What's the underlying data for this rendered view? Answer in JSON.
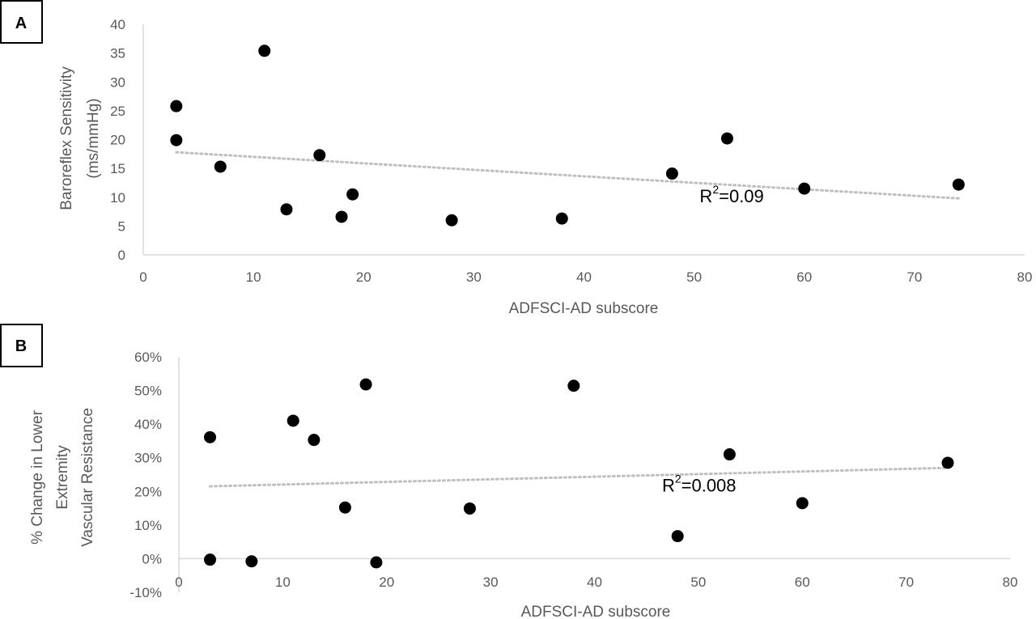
{
  "chart_data": [
    {
      "panel": "A",
      "type": "scatter",
      "xlabel": "ADFSCI-AD subscore",
      "ylabel": [
        "Baroreflex Sensitivity",
        "(ms/mmHg)"
      ],
      "xlim": [
        0,
        80
      ],
      "ylim": [
        0,
        40
      ],
      "xticks": [
        "0",
        "10",
        "20",
        "30",
        "40",
        "50",
        "60",
        "70",
        "80"
      ],
      "yticks": [
        "0",
        "5",
        "10",
        "15",
        "20",
        "25",
        "30",
        "35",
        "40"
      ],
      "grid": false,
      "points": [
        {
          "x": 3,
          "y": 25.8
        },
        {
          "x": 3,
          "y": 19.9
        },
        {
          "x": 7,
          "y": 15.3
        },
        {
          "x": 11,
          "y": 35.4
        },
        {
          "x": 13,
          "y": 7.9
        },
        {
          "x": 16,
          "y": 17.3
        },
        {
          "x": 18,
          "y": 6.6
        },
        {
          "x": 19,
          "y": 10.5
        },
        {
          "x": 28,
          "y": 6.0
        },
        {
          "x": 38,
          "y": 6.3
        },
        {
          "x": 48,
          "y": 14.1
        },
        {
          "x": 53,
          "y": 20.2
        },
        {
          "x": 60,
          "y": 11.5
        },
        {
          "x": 74,
          "y": 12.2
        }
      ],
      "trendline": {
        "x": [
          3,
          74
        ],
        "y": [
          17.8,
          9.8
        ]
      },
      "annotation": {
        "base": "R",
        "sup": "2",
        "rest": "=0.09",
        "x": 50.5,
        "y": 9.1
      }
    },
    {
      "panel": "B",
      "type": "scatter",
      "xlabel": "ADFSCI-AD subscore",
      "ylabel": [
        "% Change in Lower",
        "Extremity",
        "Vascular Resistance"
      ],
      "xlim": [
        0,
        80
      ],
      "ylim": [
        -0.1,
        0.6
      ],
      "xticks": [
        "0",
        "10",
        "20",
        "30",
        "40",
        "50",
        "60",
        "70",
        "80"
      ],
      "yticks": [
        "-10%",
        "0%",
        "10%",
        "20%",
        "30%",
        "40%",
        "50%",
        "60%"
      ],
      "grid": false,
      "points": [
        {
          "x": 3,
          "y": 0.361
        },
        {
          "x": 3,
          "y": -0.003
        },
        {
          "x": 7,
          "y": -0.008
        },
        {
          "x": 11,
          "y": 0.41
        },
        {
          "x": 13,
          "y": 0.353
        },
        {
          "x": 16,
          "y": 0.152
        },
        {
          "x": 18,
          "y": 0.518
        },
        {
          "x": 19,
          "y": -0.011
        },
        {
          "x": 28,
          "y": 0.149
        },
        {
          "x": 38,
          "y": 0.514
        },
        {
          "x": 48,
          "y": 0.067
        },
        {
          "x": 53,
          "y": 0.31
        },
        {
          "x": 60,
          "y": 0.165
        },
        {
          "x": 74,
          "y": 0.285
        }
      ],
      "trendline": {
        "x": [
          3,
          74
        ],
        "y": [
          0.215,
          0.27
        ]
      },
      "annotation": {
        "base": "R",
        "sup": "2",
        "rest": "=0.008",
        "x": 46.5,
        "y": 0.2
      }
    }
  ]
}
